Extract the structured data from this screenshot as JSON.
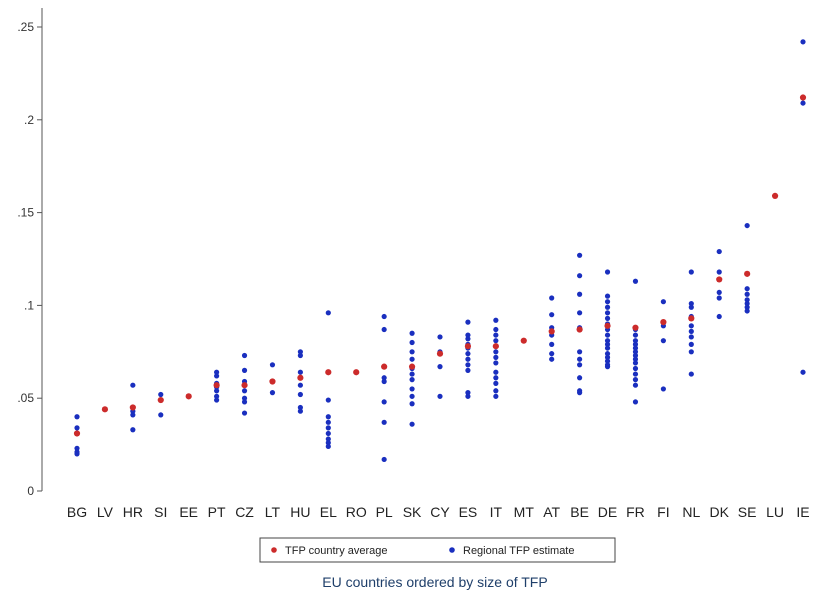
{
  "chart_data": {
    "type": "scatter",
    "title": "",
    "xlabel": "EU countries ordered by size of TFP",
    "ylabel": "",
    "ylim": [
      0,
      0.25
    ],
    "yticks": [
      0,
      0.05,
      0.1,
      0.15,
      0.2,
      0.25
    ],
    "ytick_labels": [
      "0",
      ".05",
      ".1",
      ".15",
      ".2",
      ".25"
    ],
    "categories": [
      "BG",
      "LV",
      "HR",
      "SI",
      "EE",
      "PT",
      "CZ",
      "LT",
      "HU",
      "EL",
      "RO",
      "PL",
      "SK",
      "CY",
      "ES",
      "IT",
      "MT",
      "AT",
      "BE",
      "DE",
      "FR",
      "FI",
      "NL",
      "DK",
      "SE",
      "LU",
      "IE"
    ],
    "grid": false,
    "legend_position": "bottom",
    "series": [
      {
        "name": "TFP country average",
        "color": "#cc2b2b",
        "values": [
          0.031,
          0.044,
          0.045,
          0.049,
          0.051,
          0.057,
          0.057,
          0.059,
          0.061,
          0.064,
          0.064,
          0.067,
          0.067,
          0.074,
          0.078,
          0.078,
          0.081,
          0.086,
          0.087,
          0.089,
          0.088,
          0.091,
          0.093,
          0.114,
          0.117,
          0.159,
          0.212
        ]
      },
      {
        "name": "Regional TFP estimate",
        "color": "#1a2fbf",
        "points": [
          [
            "BG",
            0.04
          ],
          [
            "BG",
            0.034
          ],
          [
            "BG",
            0.023
          ],
          [
            "BG",
            0.021
          ],
          [
            "BG",
            0.02
          ],
          [
            "LV",
            0.044
          ],
          [
            "HR",
            0.057
          ],
          [
            "HR",
            0.043
          ],
          [
            "HR",
            0.041
          ],
          [
            "HR",
            0.033
          ],
          [
            "SI",
            0.052
          ],
          [
            "SI",
            0.049
          ],
          [
            "SI",
            0.041
          ],
          [
            "EE",
            0.051
          ],
          [
            "PT",
            0.064
          ],
          [
            "PT",
            0.062
          ],
          [
            "PT",
            0.058
          ],
          [
            "PT",
            0.056
          ],
          [
            "PT",
            0.054
          ],
          [
            "PT",
            0.051
          ],
          [
            "PT",
            0.049
          ],
          [
            "CZ",
            0.073
          ],
          [
            "CZ",
            0.065
          ],
          [
            "CZ",
            0.059
          ],
          [
            "CZ",
            0.054
          ],
          [
            "CZ",
            0.05
          ],
          [
            "CZ",
            0.048
          ],
          [
            "CZ",
            0.042
          ],
          [
            "LT",
            0.068
          ],
          [
            "LT",
            0.053
          ],
          [
            "HU",
            0.075
          ],
          [
            "HU",
            0.073
          ],
          [
            "HU",
            0.064
          ],
          [
            "HU",
            0.057
          ],
          [
            "HU",
            0.052
          ],
          [
            "HU",
            0.045
          ],
          [
            "HU",
            0.043
          ],
          [
            "EL",
            0.096
          ],
          [
            "EL",
            0.049
          ],
          [
            "EL",
            0.04
          ],
          [
            "EL",
            0.037
          ],
          [
            "EL",
            0.034
          ],
          [
            "EL",
            0.031
          ],
          [
            "EL",
            0.028
          ],
          [
            "EL",
            0.026
          ],
          [
            "EL",
            0.024
          ],
          [
            "PL",
            0.094
          ],
          [
            "PL",
            0.087
          ],
          [
            "PL",
            0.061
          ],
          [
            "PL",
            0.059
          ],
          [
            "PL",
            0.048
          ],
          [
            "PL",
            0.037
          ],
          [
            "PL",
            0.017
          ],
          [
            "SK",
            0.085
          ],
          [
            "SK",
            0.08
          ],
          [
            "SK",
            0.075
          ],
          [
            "SK",
            0.071
          ],
          [
            "SK",
            0.066
          ],
          [
            "SK",
            0.063
          ],
          [
            "SK",
            0.06
          ],
          [
            "SK",
            0.055
          ],
          [
            "SK",
            0.051
          ],
          [
            "SK",
            0.047
          ],
          [
            "SK",
            0.036
          ],
          [
            "CY",
            0.083
          ],
          [
            "CY",
            0.075
          ],
          [
            "CY",
            0.067
          ],
          [
            "CY",
            0.051
          ],
          [
            "ES",
            0.091
          ],
          [
            "ES",
            0.084
          ],
          [
            "ES",
            0.082
          ],
          [
            "ES",
            0.079
          ],
          [
            "ES",
            0.077
          ],
          [
            "ES",
            0.074
          ],
          [
            "ES",
            0.071
          ],
          [
            "ES",
            0.068
          ],
          [
            "ES",
            0.065
          ],
          [
            "ES",
            0.053
          ],
          [
            "ES",
            0.051
          ],
          [
            "IT",
            0.092
          ],
          [
            "IT",
            0.087
          ],
          [
            "IT",
            0.084
          ],
          [
            "IT",
            0.081
          ],
          [
            "IT",
            0.078
          ],
          [
            "IT",
            0.075
          ],
          [
            "IT",
            0.072
          ],
          [
            "IT",
            0.069
          ],
          [
            "IT",
            0.064
          ],
          [
            "IT",
            0.061
          ],
          [
            "IT",
            0.058
          ],
          [
            "IT",
            0.054
          ],
          [
            "IT",
            0.051
          ],
          [
            "MT",
            0.081
          ],
          [
            "AT",
            0.104
          ],
          [
            "AT",
            0.095
          ],
          [
            "AT",
            0.088
          ],
          [
            "AT",
            0.084
          ],
          [
            "AT",
            0.079
          ],
          [
            "AT",
            0.074
          ],
          [
            "AT",
            0.071
          ],
          [
            "BE",
            0.127
          ],
          [
            "BE",
            0.116
          ],
          [
            "BE",
            0.106
          ],
          [
            "BE",
            0.096
          ],
          [
            "BE",
            0.088
          ],
          [
            "BE",
            0.075
          ],
          [
            "BE",
            0.071
          ],
          [
            "BE",
            0.068
          ],
          [
            "BE",
            0.061
          ],
          [
            "BE",
            0.054
          ],
          [
            "BE",
            0.053
          ],
          [
            "DE",
            0.118
          ],
          [
            "DE",
            0.105
          ],
          [
            "DE",
            0.102
          ],
          [
            "DE",
            0.099
          ],
          [
            "DE",
            0.096
          ],
          [
            "DE",
            0.093
          ],
          [
            "DE",
            0.09
          ],
          [
            "DE",
            0.087
          ],
          [
            "DE",
            0.084
          ],
          [
            "DE",
            0.081
          ],
          [
            "DE",
            0.079
          ],
          [
            "DE",
            0.077
          ],
          [
            "DE",
            0.074
          ],
          [
            "DE",
            0.072
          ],
          [
            "DE",
            0.07
          ],
          [
            "DE",
            0.068
          ],
          [
            "DE",
            0.067
          ],
          [
            "FR",
            0.113
          ],
          [
            "FR",
            0.087
          ],
          [
            "FR",
            0.084
          ],
          [
            "FR",
            0.081
          ],
          [
            "FR",
            0.079
          ],
          [
            "FR",
            0.077
          ],
          [
            "FR",
            0.075
          ],
          [
            "FR",
            0.073
          ],
          [
            "FR",
            0.071
          ],
          [
            "FR",
            0.069
          ],
          [
            "FR",
            0.066
          ],
          [
            "FR",
            0.063
          ],
          [
            "FR",
            0.06
          ],
          [
            "FR",
            0.057
          ],
          [
            "FR",
            0.048
          ],
          [
            "FI",
            0.102
          ],
          [
            "FI",
            0.089
          ],
          [
            "FI",
            0.081
          ],
          [
            "FI",
            0.055
          ],
          [
            "NL",
            0.118
          ],
          [
            "NL",
            0.101
          ],
          [
            "NL",
            0.099
          ],
          [
            "NL",
            0.094
          ],
          [
            "NL",
            0.089
          ],
          [
            "NL",
            0.086
          ],
          [
            "NL",
            0.083
          ],
          [
            "NL",
            0.079
          ],
          [
            "NL",
            0.075
          ],
          [
            "NL",
            0.063
          ],
          [
            "DK",
            0.129
          ],
          [
            "DK",
            0.118
          ],
          [
            "DK",
            0.107
          ],
          [
            "DK",
            0.104
          ],
          [
            "DK",
            0.094
          ],
          [
            "SE",
            0.143
          ],
          [
            "SE",
            0.109
          ],
          [
            "SE",
            0.106
          ],
          [
            "SE",
            0.103
          ],
          [
            "SE",
            0.101
          ],
          [
            "SE",
            0.099
          ],
          [
            "SE",
            0.097
          ],
          [
            "LU",
            0.159
          ],
          [
            "IE",
            0.242
          ],
          [
            "IE",
            0.209
          ],
          [
            "IE",
            0.064
          ]
        ]
      }
    ]
  }
}
